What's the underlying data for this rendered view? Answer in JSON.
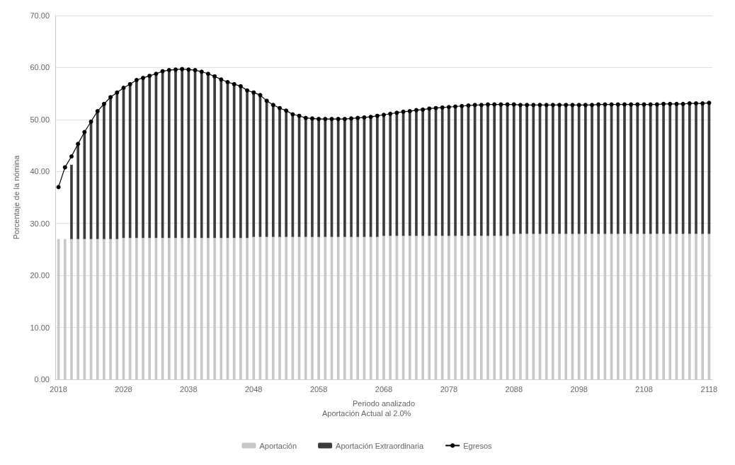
{
  "chart_data": {
    "type": "bar",
    "stacked": true,
    "xlabel": "Periodo analizado",
    "ylabel": "Porcentaje de la nómina",
    "annotations": [
      "Aportación Actual al 2.0%"
    ],
    "categories": [
      "2018",
      null,
      null,
      null,
      null,
      null,
      null,
      null,
      null,
      null,
      "2028",
      null,
      null,
      null,
      null,
      null,
      null,
      null,
      null,
      null,
      "2038",
      null,
      null,
      null,
      null,
      null,
      null,
      null,
      null,
      null,
      "2048",
      null,
      null,
      null,
      null,
      null,
      null,
      null,
      null,
      null,
      "2058",
      null,
      null,
      null,
      null,
      null,
      null,
      null,
      null,
      null,
      "2068",
      null,
      null,
      null,
      null,
      null,
      null,
      null,
      null,
      null,
      "2078",
      null,
      null,
      null,
      null,
      null,
      null,
      null,
      null,
      null,
      "2088",
      null,
      null,
      null,
      null,
      null,
      null,
      null,
      null,
      null,
      "2098",
      null,
      null,
      null,
      null,
      null,
      null,
      null,
      null,
      null,
      "2108",
      null,
      null,
      null,
      null,
      null,
      null,
      null,
      null,
      null,
      "2118"
    ],
    "ylim": [
      0,
      70
    ],
    "yticks": [
      {
        "value": 0,
        "label": "0.00"
      },
      {
        "value": 10,
        "label": "10.00"
      },
      {
        "value": 20,
        "label": "20.00"
      },
      {
        "value": 30,
        "label": "30.00"
      },
      {
        "value": 40,
        "label": "40.00"
      },
      {
        "value": 50,
        "label": "50.00"
      },
      {
        "value": 60,
        "label": "60.00"
      },
      {
        "value": 70,
        "label": "70.00"
      }
    ],
    "grid": "y",
    "legend": "bottom",
    "marker": "circle",
    "series": [
      {
        "name": "Aportación",
        "color": "#c8c8c8",
        "values": [
          27.0,
          27.0,
          27.0,
          27.0,
          27.0,
          27.0,
          27.0,
          27.0,
          27.0,
          27.0,
          27.2,
          27.2,
          27.2,
          27.2,
          27.2,
          27.2,
          27.2,
          27.2,
          27.2,
          27.2,
          27.2,
          27.2,
          27.2,
          27.2,
          27.2,
          27.2,
          27.2,
          27.2,
          27.2,
          27.2,
          27.4,
          27.4,
          27.4,
          27.4,
          27.4,
          27.4,
          27.4,
          27.4,
          27.4,
          27.4,
          27.4,
          27.4,
          27.4,
          27.4,
          27.4,
          27.4,
          27.4,
          27.4,
          27.4,
          27.4,
          27.6,
          27.6,
          27.6,
          27.6,
          27.6,
          27.6,
          27.6,
          27.6,
          27.6,
          27.6,
          27.6,
          27.6,
          27.6,
          27.6,
          27.6,
          27.6,
          27.6,
          27.6,
          27.6,
          27.6,
          28.0,
          28.0,
          28.0,
          28.0,
          28.0,
          28.0,
          28.0,
          28.0,
          28.0,
          28.0,
          28.0,
          28.0,
          28.0,
          28.0,
          28.0,
          28.0,
          28.0,
          28.0,
          28.0,
          28.0,
          28.0,
          28.0,
          28.0,
          28.0,
          28.0,
          28.0,
          28.0,
          28.0,
          28.0,
          28.0,
          28.0
        ]
      },
      {
        "name": "Aportación Extraordinaria",
        "color": "#3c3c3c",
        "values": [
          null,
          null,
          14.3,
          18.3,
          20.6,
          22.6,
          24.6,
          26.0,
          27.3,
          28.2,
          28.9,
          29.6,
          30.4,
          30.8,
          31.2,
          31.6,
          32.1,
          32.3,
          32.4,
          32.5,
          32.4,
          32.3,
          32.0,
          31.6,
          31.1,
          30.5,
          30.0,
          29.6,
          29.2,
          28.4,
          27.8,
          27.3,
          26.2,
          25.4,
          24.8,
          24.3,
          23.6,
          23.3,
          22.9,
          22.8,
          22.7,
          22.7,
          22.7,
          22.7,
          22.7,
          22.8,
          22.9,
          23.0,
          23.1,
          23.3,
          23.3,
          23.5,
          23.7,
          23.9,
          24.0,
          24.2,
          24.3,
          24.5,
          24.6,
          24.7,
          24.8,
          24.9,
          25.0,
          25.1,
          25.2,
          25.2,
          25.3,
          25.3,
          25.3,
          25.3,
          24.9,
          24.8,
          24.8,
          24.8,
          24.8,
          24.8,
          24.8,
          24.8,
          24.8,
          24.8,
          24.8,
          24.8,
          24.8,
          24.9,
          24.9,
          24.9,
          24.9,
          24.9,
          24.9,
          24.9,
          24.9,
          24.9,
          24.9,
          25.0,
          25.0,
          25.0,
          25.0,
          25.1,
          25.1,
          25.1,
          25.2
        ]
      },
      {
        "name": "Egresos",
        "type": "line",
        "color": "#000000",
        "values": [
          37.0,
          40.8,
          42.9,
          45.3,
          47.6,
          49.6,
          51.6,
          53.0,
          54.3,
          55.2,
          56.1,
          56.8,
          57.6,
          58.0,
          58.4,
          58.8,
          59.3,
          59.5,
          59.6,
          59.7,
          59.6,
          59.5,
          59.2,
          58.8,
          58.3,
          57.7,
          57.2,
          56.8,
          56.4,
          55.6,
          55.2,
          54.7,
          53.6,
          52.8,
          52.2,
          51.7,
          51.0,
          50.7,
          50.3,
          50.2,
          50.1,
          50.1,
          50.1,
          50.1,
          50.1,
          50.2,
          50.3,
          50.4,
          50.5,
          50.7,
          50.9,
          51.1,
          51.3,
          51.5,
          51.6,
          51.8,
          51.9,
          52.1,
          52.2,
          52.3,
          52.4,
          52.5,
          52.6,
          52.7,
          52.8,
          52.8,
          52.9,
          52.9,
          52.9,
          52.9,
          52.9,
          52.8,
          52.8,
          52.8,
          52.8,
          52.8,
          52.8,
          52.8,
          52.8,
          52.8,
          52.8,
          52.8,
          52.8,
          52.9,
          52.9,
          52.9,
          52.9,
          52.9,
          52.9,
          52.9,
          52.9,
          52.9,
          52.9,
          53.0,
          53.0,
          53.0,
          53.0,
          53.1,
          53.1,
          53.1,
          53.2
        ]
      }
    ]
  }
}
